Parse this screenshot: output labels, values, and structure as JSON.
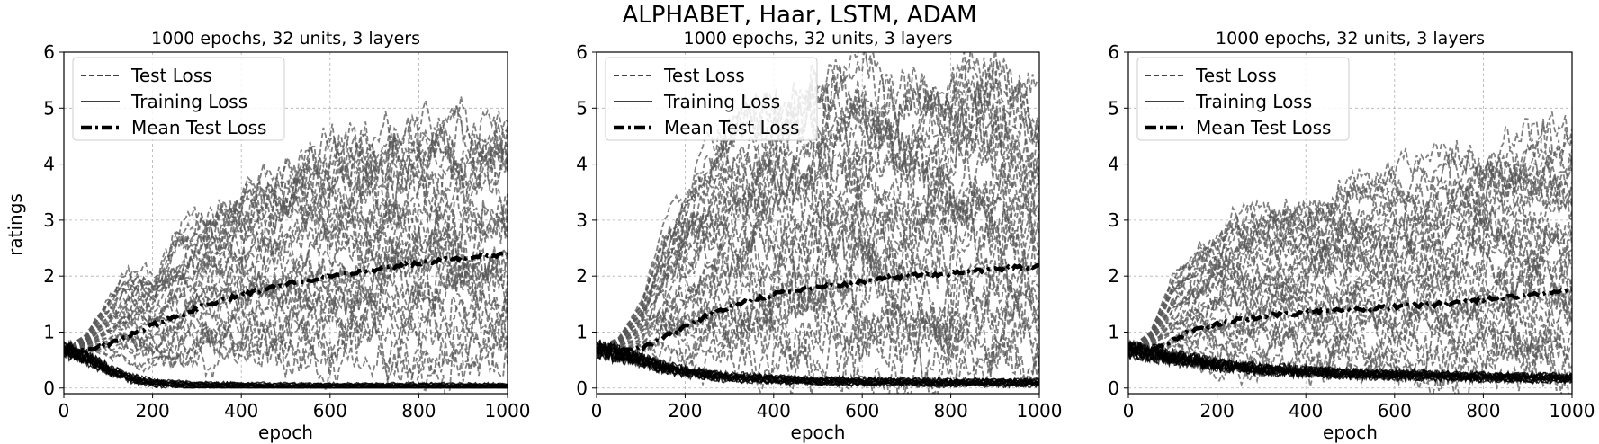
{
  "figure": {
    "suptitle": "ALPHABET, Haar, LSTM, ADAM",
    "shared_ylabel": "ratings"
  },
  "chart_data": [
    {
      "type": "line",
      "title": "1000 epochs, 32 units, 3 layers",
      "xlabel": "epoch",
      "ylabel": "ratings",
      "xlim": [
        0,
        1000
      ],
      "ylim": [
        -0.1,
        6
      ],
      "xticks": [
        0,
        200,
        400,
        600,
        800,
        1000
      ],
      "yticks": [
        0,
        1,
        2,
        3,
        4,
        5,
        6
      ],
      "grid": true,
      "legend_position": "top-left",
      "legend": [
        "Test Loss",
        "Training Loss",
        "Mean Test Loss"
      ],
      "series": [
        {
          "name": "Mean Test Loss",
          "style": "dash-dot",
          "color": "#000000",
          "x": [
            0,
            50,
            100,
            150,
            200,
            250,
            300,
            400,
            500,
            600,
            700,
            800,
            900,
            1000
          ],
          "y": [
            0.7,
            0.68,
            0.78,
            0.95,
            1.12,
            1.27,
            1.42,
            1.66,
            1.86,
            2.0,
            2.12,
            2.23,
            2.33,
            2.38
          ]
        },
        {
          "name": "Training Loss",
          "style": "solid",
          "color": "#000000",
          "x": [
            0,
            50,
            100,
            150,
            200,
            250,
            300,
            400,
            500,
            600,
            700,
            800,
            900,
            1000
          ],
          "y": [
            0.7,
            0.55,
            0.33,
            0.18,
            0.1,
            0.07,
            0.05,
            0.04,
            0.03,
            0.03,
            0.03,
            0.03,
            0.03,
            0.03
          ]
        },
        {
          "name": "Test Loss",
          "style": "dashed",
          "color": "#555555",
          "run_count": 30,
          "x": [
            0,
            50,
            100,
            150,
            200,
            250,
            300,
            400,
            500,
            600,
            700,
            800,
            900,
            1000
          ],
          "y_envelope_low": [
            0.7,
            0.66,
            0.6,
            0.55,
            0.5,
            0.48,
            0.47,
            0.46,
            0.47,
            0.48,
            0.49,
            0.5,
            0.5,
            0.5
          ],
          "y_envelope_high": [
            0.7,
            0.95,
            1.6,
            2.1,
            2.0,
            2.6,
            3.0,
            3.6,
            4.0,
            4.3,
            4.6,
            4.6,
            4.65,
            4.7
          ]
        }
      ]
    },
    {
      "type": "line",
      "title": "1000 epochs, 32 units, 3 layers",
      "xlabel": "epoch",
      "ylabel": "",
      "xlim": [
        0,
        1000
      ],
      "ylim": [
        -0.1,
        6
      ],
      "xticks": [
        0,
        200,
        400,
        600,
        800,
        1000
      ],
      "yticks": [
        0,
        1,
        2,
        3,
        4,
        5,
        6
      ],
      "grid": true,
      "legend_position": "top-left",
      "legend": [
        "Test Loss",
        "Training Loss",
        "Mean Test Loss"
      ],
      "series": [
        {
          "name": "Mean Test Loss",
          "style": "dash-dot",
          "color": "#000000",
          "x": [
            0,
            50,
            100,
            150,
            200,
            250,
            300,
            400,
            500,
            600,
            700,
            800,
            900,
            1000
          ],
          "y": [
            0.7,
            0.68,
            0.72,
            0.9,
            1.1,
            1.3,
            1.45,
            1.68,
            1.8,
            1.9,
            2.0,
            2.05,
            2.12,
            2.18
          ]
        },
        {
          "name": "Training Loss",
          "style": "solid",
          "color": "#000000",
          "x": [
            0,
            50,
            100,
            150,
            200,
            250,
            300,
            400,
            500,
            600,
            700,
            800,
            900,
            1000
          ],
          "y": [
            0.7,
            0.62,
            0.5,
            0.38,
            0.3,
            0.24,
            0.2,
            0.16,
            0.13,
            0.12,
            0.11,
            0.1,
            0.1,
            0.1
          ]
        },
        {
          "name": "Test Loss",
          "style": "dashed",
          "color": "#555555",
          "run_count": 30,
          "x": [
            0,
            50,
            100,
            150,
            200,
            250,
            300,
            400,
            500,
            600,
            700,
            800,
            900,
            1000
          ],
          "y_envelope_low": [
            0.7,
            0.68,
            0.65,
            0.6,
            0.55,
            0.5,
            0.45,
            0.4,
            0.35,
            0.3,
            0.3,
            0.3,
            0.3,
            0.3
          ],
          "y_envelope_high": [
            0.7,
            0.9,
            1.5,
            2.8,
            3.5,
            4.2,
            4.6,
            5.0,
            5.4,
            5.5,
            5.3,
            5.6,
            5.7,
            5.1
          ]
        }
      ]
    },
    {
      "type": "line",
      "title": "1000 epochs, 32 units, 3 layers",
      "xlabel": "epoch",
      "ylabel": "",
      "xlim": [
        0,
        1000
      ],
      "ylim": [
        -0.1,
        6
      ],
      "xticks": [
        0,
        200,
        400,
        600,
        800,
        1000
      ],
      "yticks": [
        0,
        1,
        2,
        3,
        4,
        5,
        6
      ],
      "grid": true,
      "legend_position": "top-left",
      "legend": [
        "Test Loss",
        "Training Loss",
        "Mean Test Loss"
      ],
      "series": [
        {
          "name": "Mean Test Loss",
          "style": "dash-dot",
          "color": "#000000",
          "x": [
            0,
            50,
            100,
            150,
            200,
            250,
            300,
            400,
            500,
            600,
            700,
            800,
            900,
            1000
          ],
          "y": [
            0.7,
            0.68,
            0.85,
            1.05,
            1.15,
            1.22,
            1.28,
            1.35,
            1.4,
            1.45,
            1.5,
            1.58,
            1.65,
            1.75
          ]
        },
        {
          "name": "Training Loss",
          "style": "solid",
          "color": "#000000",
          "x": [
            0,
            50,
            100,
            150,
            200,
            250,
            300,
            400,
            500,
            600,
            700,
            800,
            900,
            1000
          ],
          "y": [
            0.7,
            0.62,
            0.55,
            0.48,
            0.42,
            0.38,
            0.34,
            0.3,
            0.26,
            0.24,
            0.22,
            0.2,
            0.19,
            0.18
          ]
        },
        {
          "name": "Test Loss",
          "style": "dashed",
          "color": "#555555",
          "run_count": 30,
          "x": [
            0,
            50,
            100,
            150,
            200,
            250,
            300,
            400,
            500,
            600,
            700,
            800,
            900,
            1000
          ],
          "y_envelope_low": [
            0.7,
            0.66,
            0.62,
            0.58,
            0.52,
            0.48,
            0.45,
            0.4,
            0.35,
            0.3,
            0.28,
            0.25,
            0.22,
            0.2
          ],
          "y_envelope_high": [
            0.7,
            1.0,
            2.0,
            2.4,
            2.7,
            3.0,
            3.2,
            3.4,
            3.5,
            3.6,
            3.9,
            4.0,
            4.4,
            4.35
          ]
        }
      ]
    }
  ]
}
